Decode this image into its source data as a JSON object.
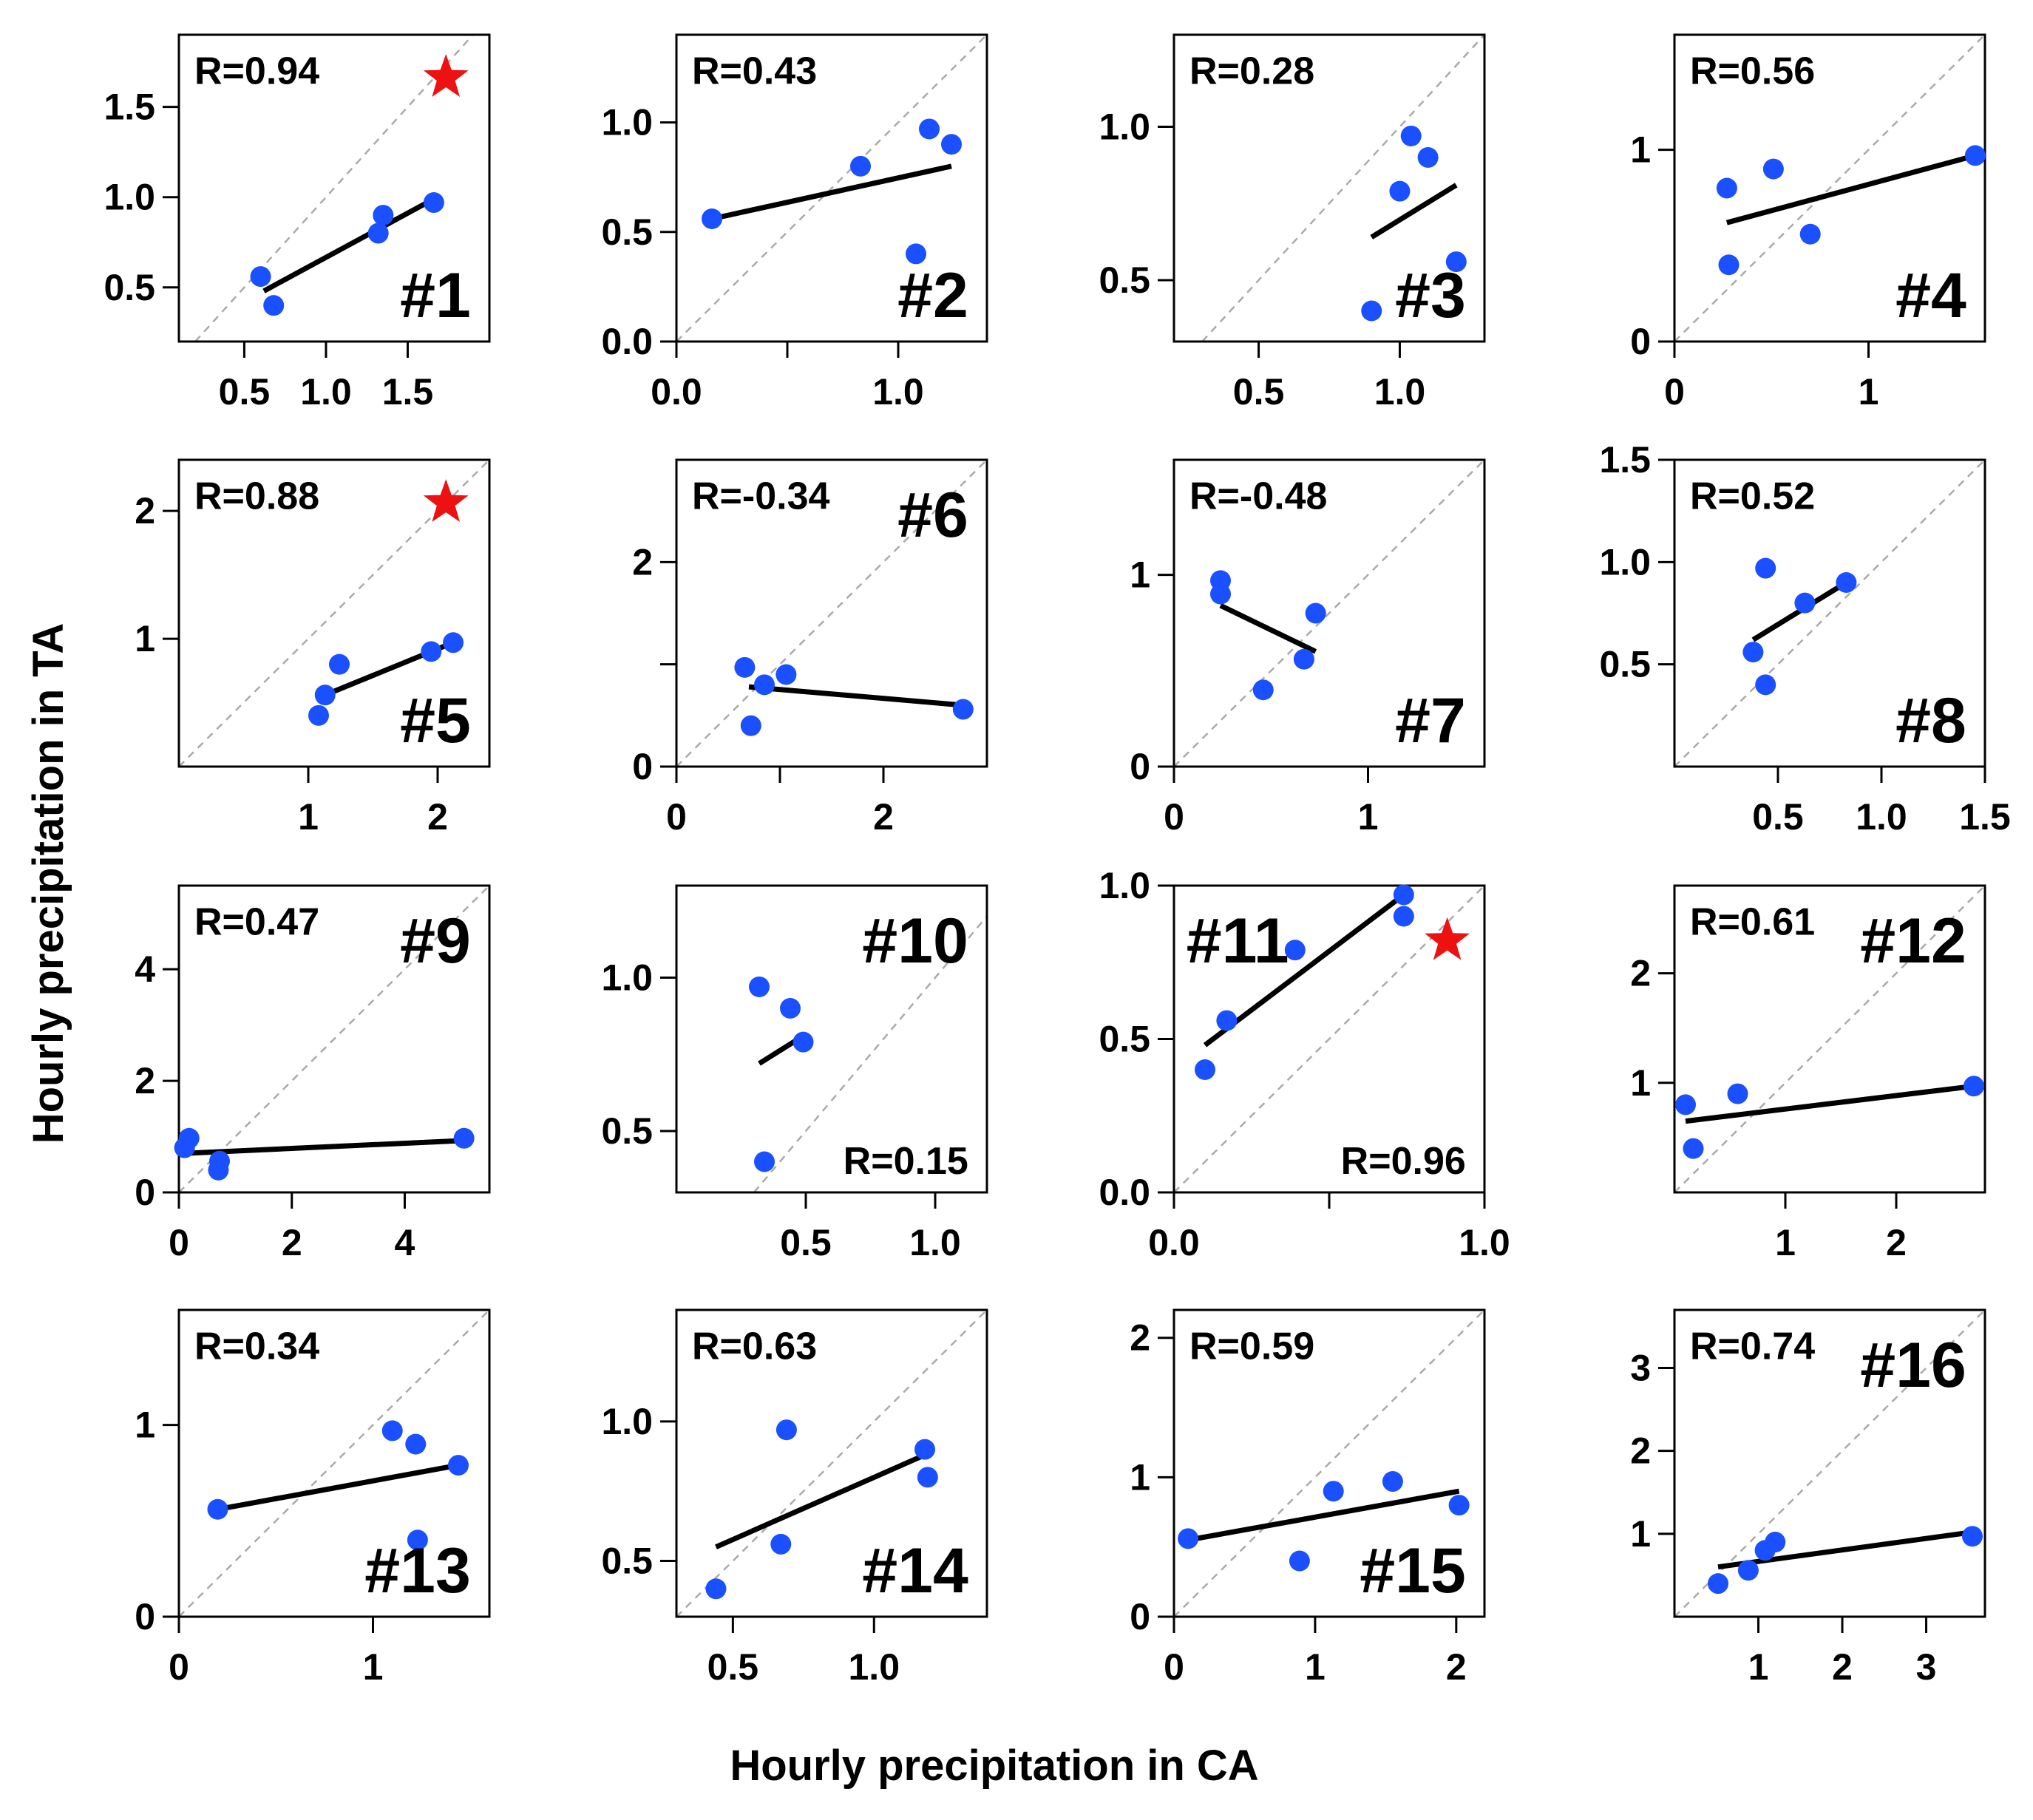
{
  "figure": {
    "xlabel": "Hourly precipitation in CA",
    "ylabel": "Hourly precipitation in TA",
    "point_color": "#1a50ff",
    "fit_color": "#000000",
    "diagonal_color": "#aaaaaa",
    "star_color": "#ee1111"
  },
  "chart_data": [
    {
      "type": "scatter",
      "panel": "#1",
      "r_label": "R=0.94",
      "star": true,
      "xlim": [
        0.1,
        2.0
      ],
      "ylim": [
        0.2,
        1.9
      ],
      "xticks": [
        0.5,
        1.0,
        1.5
      ],
      "xtick_labels": [
        "0.5",
        "1.0",
        "1.5"
      ],
      "yticks": [
        0.5,
        1.0,
        1.5
      ],
      "ytick_labels": [
        "0.5",
        "1.0",
        "1.5"
      ],
      "x": [
        0.6,
        0.68,
        1.32,
        1.35,
        1.66
      ],
      "y": [
        0.56,
        0.4,
        0.8,
        0.9,
        0.97
      ],
      "fit": [
        [
          0.62,
          0.48
        ],
        [
          1.66,
          0.99
        ]
      ]
    },
    {
      "type": "scatter",
      "panel": "#2",
      "r_label": "R=0.43",
      "star": false,
      "xlim": [
        0.0,
        1.4
      ],
      "ylim": [
        0.0,
        1.4
      ],
      "xticks": [
        0.0,
        0.5,
        1.0
      ],
      "xtick_labels": [
        "0.0",
        "",
        "1.0"
      ],
      "yticks": [
        0.0,
        0.5,
        1.0
      ],
      "ytick_labels": [
        "0.0",
        "0.5",
        "1.0"
      ],
      "x": [
        0.16,
        0.83,
        1.08,
        1.14,
        1.24
      ],
      "y": [
        0.56,
        0.8,
        0.4,
        0.97,
        0.9
      ],
      "fit": [
        [
          0.16,
          0.56
        ],
        [
          1.24,
          0.8
        ]
      ]
    },
    {
      "type": "scatter",
      "panel": "#3",
      "r_label": "R=0.28",
      "star": false,
      "xlim": [
        0.2,
        1.3
      ],
      "ylim": [
        0.3,
        1.3
      ],
      "xticks": [
        0.5,
        1.0
      ],
      "xtick_labels": [
        "0.5",
        "1.0"
      ],
      "yticks": [
        0.5,
        1.0
      ],
      "ytick_labels": [
        "0.5",
        "1.0"
      ],
      "x": [
        0.9,
        1.0,
        1.04,
        1.1,
        1.2
      ],
      "y": [
        0.4,
        0.79,
        0.97,
        0.9,
        0.56
      ],
      "fit": [
        [
          0.9,
          0.64
        ],
        [
          1.2,
          0.81
        ]
      ]
    },
    {
      "type": "scatter",
      "panel": "#4",
      "r_label": "R=0.56",
      "star": false,
      "xlim": [
        0.0,
        1.6
      ],
      "ylim": [
        0.0,
        1.6
      ],
      "xticks": [
        0,
        1
      ],
      "xtick_labels": [
        "0",
        "1"
      ],
      "yticks": [
        0,
        1
      ],
      "ytick_labels": [
        "0",
        "1"
      ],
      "x": [
        0.27,
        0.28,
        0.51,
        0.7,
        1.55
      ],
      "y": [
        0.8,
        0.4,
        0.9,
        0.56,
        0.97
      ],
      "fit": [
        [
          0.27,
          0.62
        ],
        [
          1.55,
          0.97
        ]
      ]
    },
    {
      "type": "scatter",
      "panel": "#5",
      "r_label": "R=0.88",
      "star": true,
      "xlim": [
        0.0,
        2.4
      ],
      "ylim": [
        0.0,
        2.4
      ],
      "xticks": [
        1,
        2
      ],
      "xtick_labels": [
        "1",
        "2"
      ],
      "yticks": [
        1,
        2
      ],
      "ytick_labels": [
        "1",
        "2"
      ],
      "x": [
        1.08,
        1.13,
        1.24,
        1.95,
        2.12
      ],
      "y": [
        0.4,
        0.56,
        0.8,
        0.9,
        0.97
      ],
      "fit": [
        [
          1.13,
          0.56
        ],
        [
          2.12,
          0.97
        ]
      ]
    },
    {
      "type": "scatter",
      "panel": "#6",
      "r_label": "R=-0.34",
      "star": false,
      "xlim": [
        0.0,
        3.0
      ],
      "ylim": [
        0.0,
        3.0
      ],
      "xticks": [
        0,
        1,
        2
      ],
      "xtick_labels": [
        "0",
        "",
        "2"
      ],
      "yticks": [
        0,
        1,
        2
      ],
      "ytick_labels": [
        "0",
        "",
        "2"
      ],
      "x": [
        0.66,
        0.72,
        0.85,
        1.06,
        2.77
      ],
      "y": [
        0.97,
        0.4,
        0.8,
        0.9,
        0.56
      ],
      "fit": [
        [
          0.7,
          0.78
        ],
        [
          2.77,
          0.6
        ]
      ]
    },
    {
      "type": "scatter",
      "panel": "#7",
      "r_label": "R=-0.48",
      "star": false,
      "xlim": [
        0.0,
        1.6
      ],
      "ylim": [
        0.0,
        1.6
      ],
      "xticks": [
        0,
        1
      ],
      "xtick_labels": [
        "0",
        "1"
      ],
      "yticks": [
        0,
        1
      ],
      "ytick_labels": [
        "0",
        "1"
      ],
      "x": [
        0.24,
        0.24,
        0.46,
        0.67,
        0.73
      ],
      "y": [
        0.97,
        0.9,
        0.4,
        0.56,
        0.8
      ],
      "fit": [
        [
          0.24,
          0.84
        ],
        [
          0.73,
          0.6
        ]
      ]
    },
    {
      "type": "scatter",
      "panel": "#8",
      "r_label": "R=0.52",
      "star": false,
      "xlim": [
        0.0,
        1.5
      ],
      "ylim": [
        0.0,
        1.5
      ],
      "xticks": [
        0.5,
        1.0,
        1.5
      ],
      "xtick_labels": [
        "0.5",
        "1.0",
        "1.5"
      ],
      "yticks": [
        0.5,
        1.0,
        1.5
      ],
      "ytick_labels": [
        "0.5",
        "1.0",
        "1.5"
      ],
      "x": [
        0.38,
        0.44,
        0.44,
        0.63,
        0.83
      ],
      "y": [
        0.56,
        0.97,
        0.4,
        0.8,
        0.9
      ],
      "fit": [
        [
          0.38,
          0.62
        ],
        [
          0.83,
          0.9
        ]
      ]
    },
    {
      "type": "scatter",
      "panel": "#9",
      "r_label": "R=0.47",
      "star": false,
      "xlim": [
        0.0,
        5.5
      ],
      "ylim": [
        0.0,
        5.5
      ],
      "xticks": [
        0,
        2,
        4
      ],
      "xtick_labels": [
        "0",
        "2",
        "4"
      ],
      "yticks": [
        0,
        2,
        4
      ],
      "ytick_labels": [
        "0",
        "2",
        "4"
      ],
      "x": [
        0.1,
        0.18,
        0.7,
        0.72,
        5.05
      ],
      "y": [
        0.8,
        0.97,
        0.4,
        0.56,
        0.97
      ],
      "fit": [
        [
          0.1,
          0.7
        ],
        [
          5.05,
          0.93
        ]
      ]
    },
    {
      "type": "scatter",
      "panel": "#10",
      "r_label": "R=0.15",
      "star": false,
      "xlim": [
        0.0,
        1.2
      ],
      "ylim": [
        0.3,
        1.3
      ],
      "xticks": [
        0.5,
        1.0
      ],
      "xtick_labels": [
        "0.5",
        "1.0"
      ],
      "yticks": [
        0.5,
        1.0
      ],
      "ytick_labels": [
        "0.5",
        "1.0"
      ],
      "x": [
        0.32,
        0.34,
        0.44,
        0.49
      ],
      "y": [
        0.97,
        0.4,
        0.9,
        0.79
      ],
      "fit": [
        [
          0.32,
          0.72
        ],
        [
          0.49,
          0.81
        ]
      ]
    },
    {
      "type": "scatter",
      "panel": "#11",
      "r_label": "R=0.96",
      "star": true,
      "xlim": [
        0.0,
        1.0
      ],
      "ylim": [
        0.0,
        1.0
      ],
      "xticks": [
        0.0,
        0.5,
        1.0
      ],
      "xtick_labels": [
        "0.0",
        "",
        "1.0"
      ],
      "yticks": [
        0.0,
        0.5,
        1.0
      ],
      "ytick_labels": [
        "0.0",
        "0.5",
        "1.0"
      ],
      "x": [
        0.1,
        0.17,
        0.39,
        0.74,
        0.74
      ],
      "y": [
        0.4,
        0.56,
        0.79,
        0.97,
        0.9
      ],
      "fit": [
        [
          0.1,
          0.48
        ],
        [
          0.74,
          0.97
        ]
      ]
    },
    {
      "type": "scatter",
      "panel": "#12",
      "r_label": "R=0.61",
      "star": false,
      "xlim": [
        0.0,
        2.8
      ],
      "ylim": [
        0.0,
        2.8
      ],
      "xticks": [
        1,
        2
      ],
      "xtick_labels": [
        "1",
        "2"
      ],
      "yticks": [
        1,
        2
      ],
      "ytick_labels": [
        "1",
        "2"
      ],
      "x": [
        0.1,
        0.17,
        0.57,
        2.7
      ],
      "y": [
        0.8,
        0.4,
        0.9,
        0.97
      ],
      "fit": [
        [
          0.1,
          0.65
        ],
        [
          2.7,
          0.97
        ]
      ]
    },
    {
      "type": "scatter",
      "panel": "#13",
      "r_label": "R=0.34",
      "star": false,
      "xlim": [
        0.0,
        1.6
      ],
      "ylim": [
        0.0,
        1.6
      ],
      "xticks": [
        0,
        1
      ],
      "xtick_labels": [
        "0",
        "1"
      ],
      "yticks": [
        0,
        1
      ],
      "ytick_labels": [
        "0",
        "1"
      ],
      "x": [
        0.2,
        1.1,
        1.22,
        1.23,
        1.44
      ],
      "y": [
        0.56,
        0.97,
        0.9,
        0.4,
        0.79
      ],
      "fit": [
        [
          0.2,
          0.56
        ],
        [
          1.44,
          0.79
        ]
      ]
    },
    {
      "type": "scatter",
      "panel": "#14",
      "r_label": "R=0.63",
      "star": false,
      "xlim": [
        0.3,
        1.4
      ],
      "ylim": [
        0.3,
        1.4
      ],
      "xticks": [
        0.5,
        1.0
      ],
      "xtick_labels": [
        "0.5",
        "1.0"
      ],
      "yticks": [
        0.5,
        1.0
      ],
      "ytick_labels": [
        "0.5",
        "1.0"
      ],
      "x": [
        0.44,
        0.67,
        0.69,
        1.18,
        1.19
      ],
      "y": [
        0.4,
        0.56,
        0.97,
        0.9,
        0.8
      ],
      "fit": [
        [
          0.44,
          0.55
        ],
        [
          1.18,
          0.88
        ]
      ]
    },
    {
      "type": "scatter",
      "panel": "#15",
      "r_label": "R=0.59",
      "star": false,
      "xlim": [
        0.0,
        2.2
      ],
      "ylim": [
        0.0,
        2.2
      ],
      "xticks": [
        0,
        1,
        2
      ],
      "xtick_labels": [
        "0",
        "1",
        "2"
      ],
      "yticks": [
        0,
        1,
        2
      ],
      "ytick_labels": [
        "0",
        "1",
        "2"
      ],
      "x": [
        0.1,
        0.89,
        1.13,
        1.55,
        2.02
      ],
      "y": [
        0.56,
        0.4,
        0.9,
        0.97,
        0.8
      ],
      "fit": [
        [
          0.1,
          0.55
        ],
        [
          2.02,
          0.9
        ]
      ]
    },
    {
      "type": "scatter",
      "panel": "#16",
      "r_label": "R=0.74",
      "star": false,
      "xlim": [
        0.0,
        3.7
      ],
      "ylim": [
        0.0,
        3.7
      ],
      "xticks": [
        1,
        2,
        3
      ],
      "xtick_labels": [
        "1",
        "2",
        "3"
      ],
      "yticks": [
        1,
        2,
        3
      ],
      "ytick_labels": [
        "1",
        "2",
        "3"
      ],
      "x": [
        0.52,
        0.88,
        1.08,
        1.2,
        3.55
      ],
      "y": [
        0.4,
        0.56,
        0.8,
        0.9,
        0.97
      ],
      "fit": [
        [
          0.52,
          0.6
        ],
        [
          3.55,
          1.02
        ]
      ]
    }
  ]
}
